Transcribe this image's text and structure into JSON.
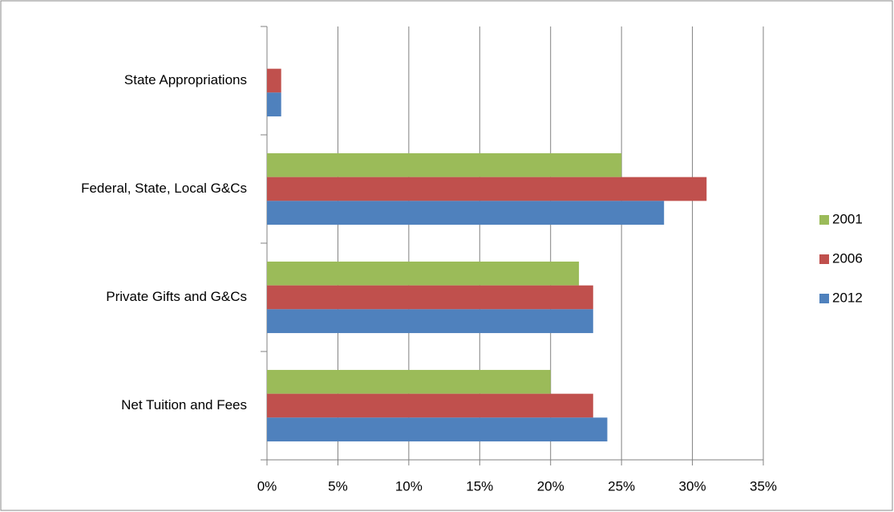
{
  "chart_data": {
    "type": "bar",
    "orientation": "horizontal",
    "categories": [
      "State Appropriations",
      "Federal, State, Local G&Cs",
      "Private Gifts and G&Cs",
      "Net Tuition and Fees"
    ],
    "series": [
      {
        "name": "2001",
        "color": "#9bbb59",
        "values": [
          0,
          25,
          22,
          20
        ]
      },
      {
        "name": "2006",
        "color": "#c0504d",
        "values": [
          1,
          31,
          23,
          23
        ]
      },
      {
        "name": "2012",
        "color": "#4f81bd",
        "values": [
          1,
          28,
          23,
          24
        ]
      }
    ],
    "xlim": [
      0,
      35
    ],
    "xticks": [
      {
        "value": 0,
        "label": "0%"
      },
      {
        "value": 5,
        "label": "5%"
      },
      {
        "value": 10,
        "label": "10%"
      },
      {
        "value": 15,
        "label": "15%"
      },
      {
        "value": 20,
        "label": "20%"
      },
      {
        "value": 25,
        "label": "25%"
      },
      {
        "value": 30,
        "label": "30%"
      },
      {
        "value": 35,
        "label": "35%"
      }
    ],
    "grid": true,
    "legend": "right"
  }
}
